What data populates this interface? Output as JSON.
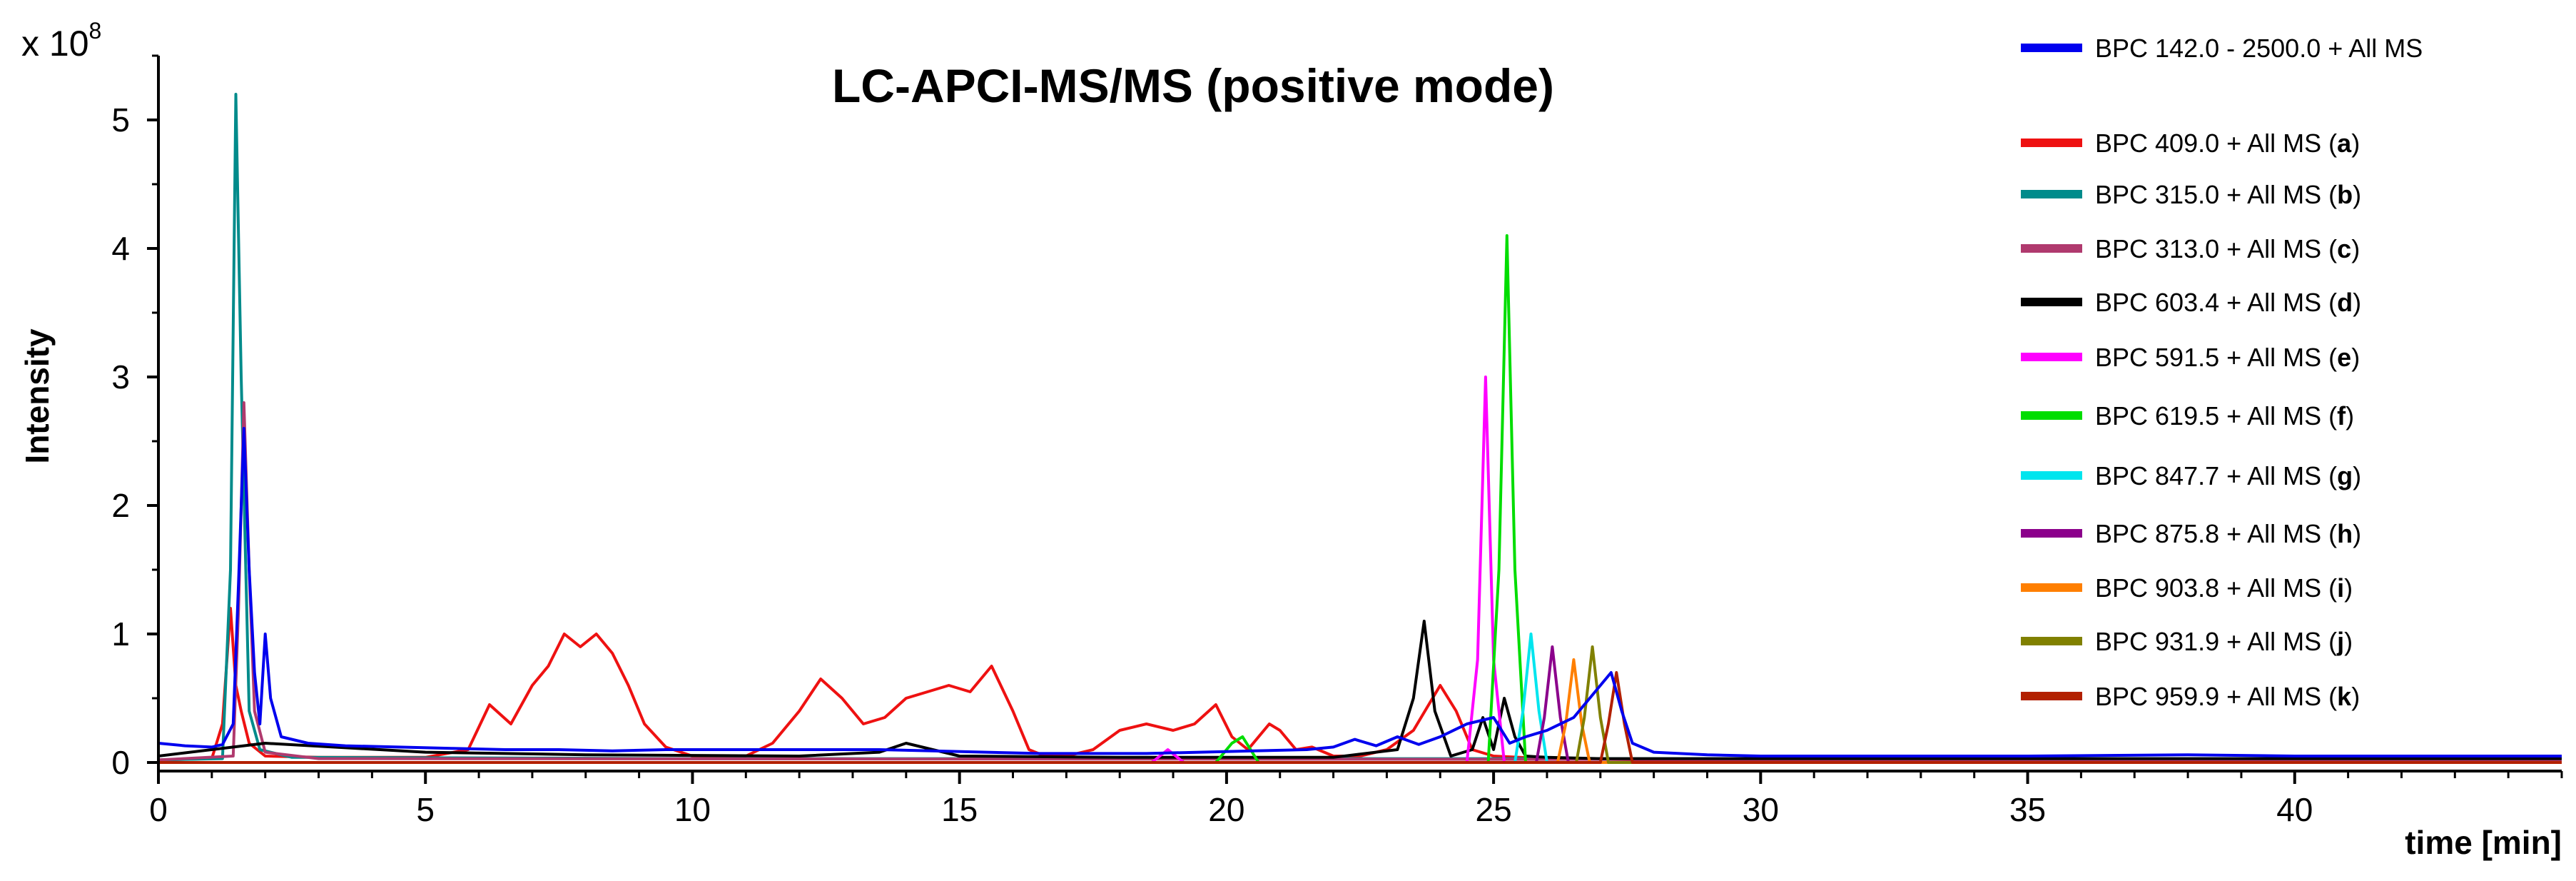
{
  "chart_data": {
    "type": "line",
    "title": "LC-APCI-MS/MS (positive mode)",
    "xlabel": "time [min]",
    "ylabel": "Intensity",
    "y_multiplier_base": "x 10",
    "y_multiplier_exp": "8",
    "xlim": [
      0,
      45
    ],
    "ylim": [
      0,
      5.5
    ],
    "x_ticks": [
      0,
      5,
      10,
      15,
      20,
      25,
      30,
      35,
      40
    ],
    "y_ticks": [
      0,
      1,
      2,
      3,
      4,
      5
    ],
    "grid": false,
    "legend_position": "right",
    "series": [
      {
        "name": "BPC 142.0 - 2500.0 + All MS",
        "color": "#0000EE",
        "letter": "",
        "x": [
          0,
          0.5,
          1.0,
          1.2,
          1.4,
          1.5,
          1.6,
          1.7,
          1.8,
          1.9,
          2.0,
          2.1,
          2.3,
          2.8,
          3.5,
          4.5,
          5.5,
          6.5,
          7.5,
          8.5,
          9.5,
          10.5,
          11.5,
          12.5,
          13.5,
          14.5,
          15.5,
          16.5,
          17.5,
          18.5,
          19.5,
          20.5,
          21.5,
          22.0,
          22.4,
          22.8,
          23.2,
          23.6,
          24.0,
          24.5,
          25.0,
          25.3,
          25.6,
          26.0,
          26.5,
          27.0,
          27.2,
          27.4,
          27.6,
          28.0,
          29.0,
          30.0,
          35.0,
          38.0,
          40.0,
          42.0,
          45.0
        ],
        "y": [
          0.15,
          0.13,
          0.12,
          0.14,
          0.3,
          1.4,
          2.6,
          1.5,
          0.7,
          0.3,
          1.0,
          0.5,
          0.2,
          0.15,
          0.13,
          0.12,
          0.11,
          0.1,
          0.1,
          0.09,
          0.1,
          0.1,
          0.1,
          0.1,
          0.1,
          0.09,
          0.08,
          0.07,
          0.07,
          0.07,
          0.08,
          0.09,
          0.1,
          0.12,
          0.18,
          0.13,
          0.2,
          0.14,
          0.2,
          0.3,
          0.35,
          0.15,
          0.2,
          0.25,
          0.35,
          0.6,
          0.7,
          0.4,
          0.15,
          0.08,
          0.06,
          0.05,
          0.05,
          0.06,
          0.05,
          0.05,
          0.05
        ]
      },
      {
        "name": "BPC 409.0 + All MS",
        "color": "#EE1111",
        "letter": "a",
        "x": [
          0,
          1.0,
          1.2,
          1.35,
          1.45,
          1.55,
          1.7,
          2.0,
          3.0,
          5.0,
          5.8,
          6.2,
          6.6,
          7.0,
          7.3,
          7.6,
          7.9,
          8.2,
          8.5,
          8.8,
          9.1,
          9.5,
          10.0,
          11.0,
          11.5,
          12.0,
          12.4,
          12.8,
          13.2,
          13.6,
          14.0,
          14.4,
          14.8,
          15.2,
          15.6,
          16.0,
          16.3,
          16.6,
          17.0,
          17.5,
          18.0,
          18.5,
          19.0,
          19.4,
          19.8,
          20.1,
          20.4,
          20.8,
          21.0,
          21.3,
          21.6,
          22.0,
          22.5,
          23.0,
          23.5,
          24.0,
          24.3,
          24.6,
          25.0,
          26.0,
          28.0,
          45.0
        ],
        "y": [
          0.02,
          0.03,
          0.3,
          1.2,
          0.6,
          0.4,
          0.15,
          0.05,
          0.04,
          0.04,
          0.1,
          0.45,
          0.3,
          0.6,
          0.75,
          1.0,
          0.9,
          1.0,
          0.85,
          0.6,
          0.3,
          0.12,
          0.05,
          0.05,
          0.15,
          0.4,
          0.65,
          0.5,
          0.3,
          0.35,
          0.5,
          0.55,
          0.6,
          0.55,
          0.75,
          0.4,
          0.1,
          0.05,
          0.05,
          0.1,
          0.25,
          0.3,
          0.25,
          0.3,
          0.45,
          0.2,
          0.1,
          0.3,
          0.25,
          0.1,
          0.12,
          0.05,
          0.05,
          0.1,
          0.25,
          0.6,
          0.4,
          0.1,
          0.05,
          0.03,
          0.02,
          0.02
        ]
      },
      {
        "name": "BPC 315.0 + All MS",
        "color": "#008B8B",
        "letter": "b",
        "x": [
          0,
          1.2,
          1.35,
          1.45,
          1.55,
          1.7,
          1.9,
          2.5,
          10.0,
          45.0
        ],
        "y": [
          0.02,
          0.03,
          1.5,
          5.2,
          3.0,
          0.4,
          0.1,
          0.04,
          0.03,
          0.03
        ]
      },
      {
        "name": "BPC 313.0 + All MS",
        "color": "#B03A6E",
        "letter": "c",
        "x": [
          0,
          1.4,
          1.5,
          1.6,
          1.7,
          1.8,
          2.0,
          3.0,
          45.0
        ],
        "y": [
          0.02,
          0.05,
          1.2,
          2.8,
          1.5,
          0.4,
          0.08,
          0.03,
          0.02
        ]
      },
      {
        "name": "BPC 603.4 + All MS",
        "color": "#000000",
        "letter": "d",
        "x": [
          0,
          2.0,
          5.0,
          8.0,
          12.0,
          13.5,
          14.0,
          14.5,
          15.0,
          18.0,
          22.0,
          23.2,
          23.5,
          23.7,
          23.9,
          24.2,
          24.6,
          24.8,
          25.0,
          25.2,
          25.4,
          25.6,
          26.0,
          27.0,
          45.0
        ],
        "y": [
          0.05,
          0.15,
          0.08,
          0.06,
          0.05,
          0.08,
          0.15,
          0.1,
          0.05,
          0.04,
          0.04,
          0.1,
          0.5,
          1.1,
          0.4,
          0.05,
          0.1,
          0.35,
          0.1,
          0.5,
          0.2,
          0.05,
          0.04,
          0.03,
          0.03
        ]
      },
      {
        "name": "BPC 591.5 + All MS",
        "color": "#FF00FF",
        "letter": "e",
        "x": [
          0,
          18.6,
          18.9,
          19.2,
          24.5,
          24.7,
          24.85,
          25.0,
          25.2,
          45.0
        ],
        "y": [
          0.0,
          0.0,
          0.1,
          0.0,
          0.0,
          0.8,
          3.0,
          0.8,
          0.0,
          0.0
        ]
      },
      {
        "name": "BPC 619.5 + All MS",
        "color": "#00DD00",
        "letter": "f",
        "x": [
          0,
          19.8,
          20.1,
          20.3,
          20.6,
          24.9,
          25.1,
          25.25,
          25.4,
          25.6,
          45.0
        ],
        "y": [
          0.0,
          0.0,
          0.15,
          0.2,
          0.0,
          0.0,
          1.5,
          4.1,
          1.5,
          0.0,
          0.0
        ]
      },
      {
        "name": "BPC 847.7 + All MS",
        "color": "#00E5EE",
        "letter": "g",
        "x": [
          0,
          25.4,
          25.55,
          25.7,
          25.85,
          26.0,
          45.0
        ],
        "y": [
          0.0,
          0.0,
          0.4,
          1.0,
          0.4,
          0.0,
          0.0
        ]
      },
      {
        "name": "BPC 875.8 + All MS",
        "color": "#8B008B",
        "letter": "h",
        "x": [
          0,
          25.8,
          25.95,
          26.1,
          26.25,
          26.4,
          45.0
        ],
        "y": [
          0.0,
          0.0,
          0.35,
          0.9,
          0.35,
          0.0,
          0.0
        ]
      },
      {
        "name": "BPC 903.8 + All MS",
        "color": "#FF7F00",
        "letter": "i",
        "x": [
          0,
          26.2,
          26.35,
          26.5,
          26.65,
          26.8,
          45.0
        ],
        "y": [
          0.0,
          0.0,
          0.3,
          0.8,
          0.3,
          0.0,
          0.0
        ]
      },
      {
        "name": "BPC 931.9 + All MS",
        "color": "#808000",
        "letter": "j",
        "x": [
          0,
          26.55,
          26.7,
          26.85,
          27.0,
          27.15,
          45.0
        ],
        "y": [
          0.0,
          0.0,
          0.35,
          0.9,
          0.35,
          0.0,
          0.0
        ]
      },
      {
        "name": "BPC 959.9 + All MS",
        "color": "#B22000",
        "letter": "k",
        "x": [
          0,
          27.0,
          27.15,
          27.3,
          27.45,
          27.6,
          45.0
        ],
        "y": [
          0.0,
          0.0,
          0.3,
          0.7,
          0.3,
          0.0,
          0.0
        ]
      }
    ]
  }
}
